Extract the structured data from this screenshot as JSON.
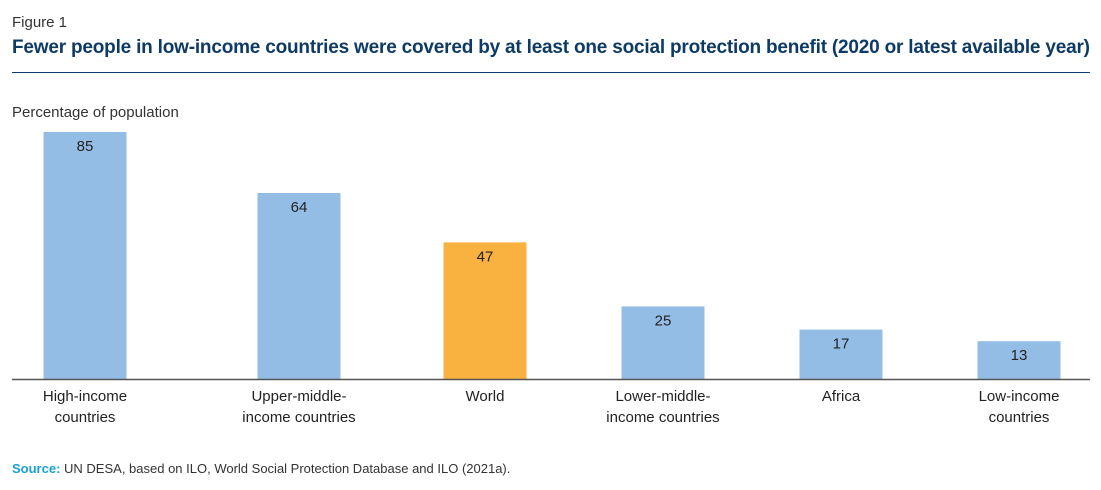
{
  "figure_label": "Figure 1",
  "title": "Fewer people in low-income countries were covered by at least one social protection benefit (2020 or latest available year)",
  "y_axis_label": "Percentage of population",
  "source": {
    "label": "Source:",
    "text": "UN DESA, based on ILO, World Social Protection Database and ILO (2021a)."
  },
  "colors": {
    "default_bar": "#94bde6",
    "highlight_bar": "#f9b13f",
    "axis": "#555555",
    "title": "#0d3b66"
  },
  "chart_data": {
    "type": "bar",
    "title": "Fewer people in low-income countries were covered by at least one social protection benefit (2020 or latest available year)",
    "ylabel": "Percentage of population",
    "xlabel": "",
    "ylim": [
      0,
      85
    ],
    "grid": false,
    "categories": [
      [
        "High-income",
        "countries"
      ],
      [
        "Upper-middle-",
        "income countries"
      ],
      [
        "World"
      ],
      [
        "Lower-middle-",
        "income countries"
      ],
      [
        "Africa"
      ],
      [
        "Low-income",
        "countries"
      ]
    ],
    "values": [
      85,
      64,
      47,
      25,
      17,
      13
    ],
    "highlight": [
      false,
      false,
      true,
      false,
      false,
      false
    ]
  }
}
